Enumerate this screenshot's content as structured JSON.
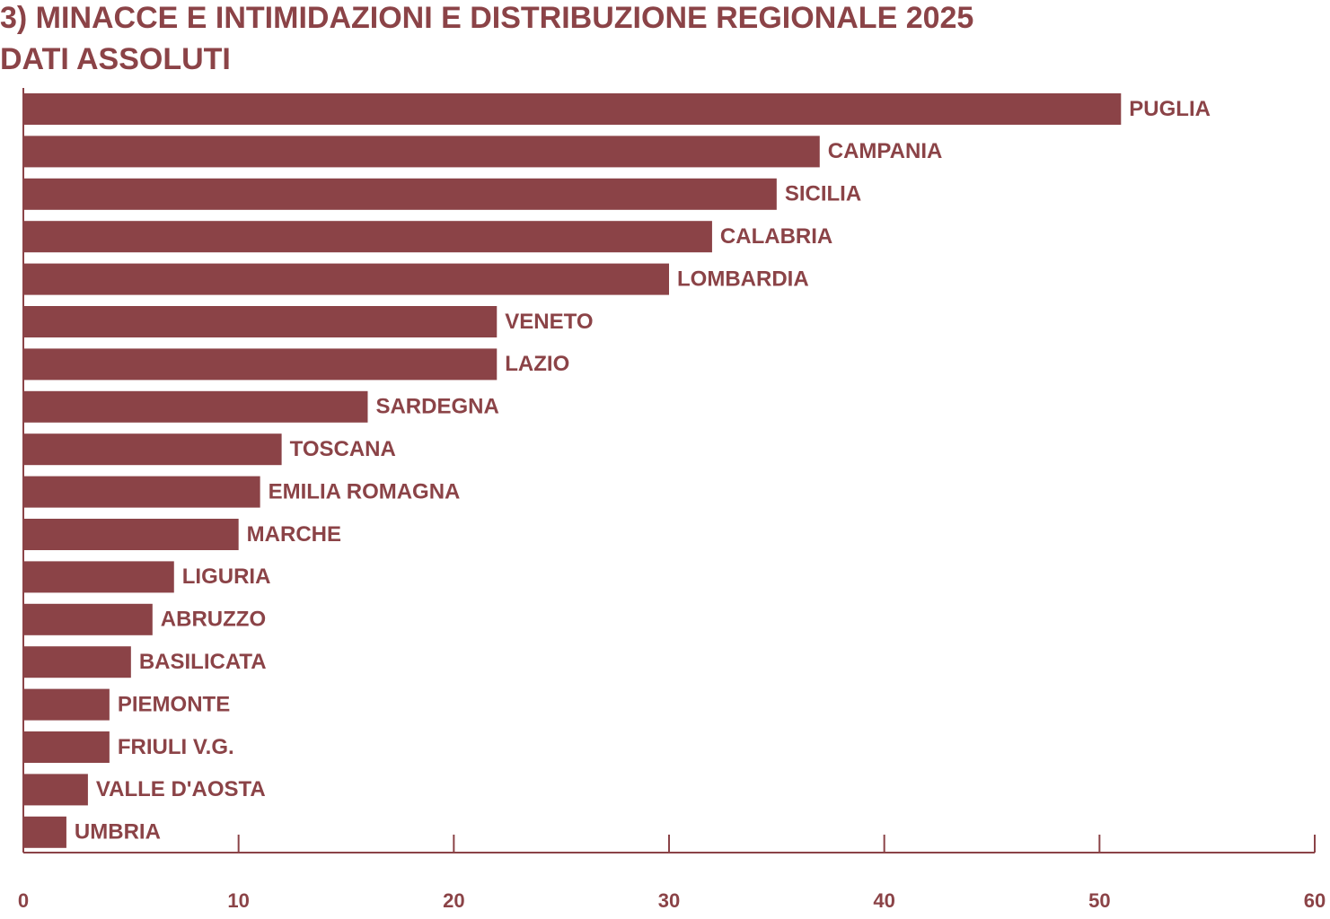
{
  "chart_data": {
    "type": "bar",
    "orientation": "horizontal",
    "title": "3) MINACCE E INTIMIDAZIONI E DISTRIBUZIONE REGIONALE 2025",
    "subtitle": "DATI ASSOLUTI",
    "categories": [
      "PUGLIA",
      "CAMPANIA",
      "SICILIA",
      "CALABRIA",
      "LOMBARDIA",
      "VENETO",
      "LAZIO",
      "SARDEGNA",
      "TOSCANA",
      "EMILIA ROMAGNA",
      "MARCHE",
      "LIGURIA",
      "ABRUZZO",
      "BASILICATA",
      "PIEMONTE",
      "FRIULI V.G.",
      "VALLE D'AOSTA",
      "UMBRIA"
    ],
    "values": [
      51,
      37,
      35,
      32,
      30,
      22,
      22,
      16,
      12,
      11,
      10,
      7,
      6,
      5,
      4,
      4,
      3,
      2
    ],
    "color": "#8b4347",
    "xlim": [
      0,
      60
    ],
    "xticks": [
      0,
      10,
      20,
      30,
      40,
      50,
      60
    ],
    "grid": false
  }
}
